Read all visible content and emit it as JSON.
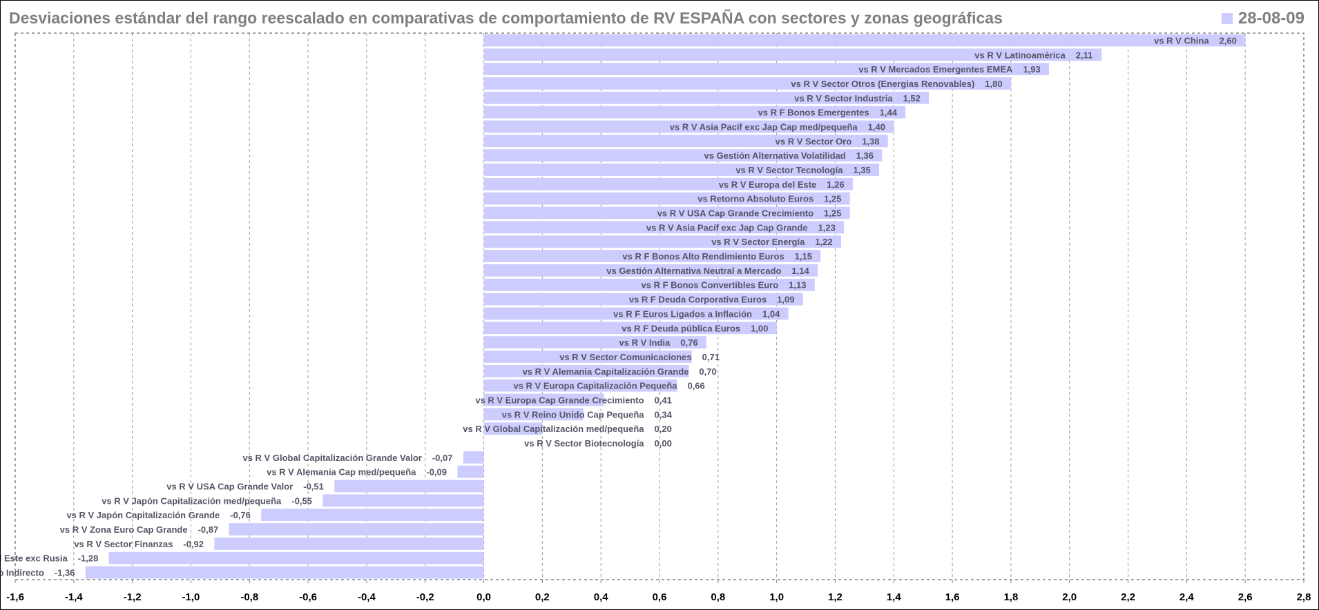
{
  "title": "Desviaciones estándar del rango reescalado en comparativas de comportamiento de RV ESPAÑA con sectores y zonas geográficas",
  "legend": {
    "label": "28-08-09",
    "color": "#ccccff"
  },
  "chart_data": {
    "type": "bar",
    "orientation": "horizontal",
    "title": "Desviaciones estándar del rango reescalado en comparativas de comportamiento de RV ESPAÑA con sectores y zonas geográficas",
    "series": [
      {
        "name": "28-08-09"
      }
    ],
    "xlim": [
      -1.6,
      2.8
    ],
    "x_ticks": [
      "-1,6",
      "-1,4",
      "-1,2",
      "-1,0",
      "-0,8",
      "-0,6",
      "-0,4",
      "-0,2",
      "0,0",
      "0,2",
      "0,4",
      "0,6",
      "0,8",
      "1,0",
      "1,2",
      "1,4",
      "1,6",
      "1,8",
      "2,0",
      "2,2",
      "2,4",
      "2,6",
      "2,8"
    ],
    "x_tick_values": [
      -1.6,
      -1.4,
      -1.2,
      -1.0,
      -0.8,
      -0.6,
      -0.4,
      -0.2,
      0.0,
      0.2,
      0.4,
      0.6,
      0.8,
      1.0,
      1.2,
      1.4,
      1.6,
      1.8,
      2.0,
      2.2,
      2.4,
      2.6,
      2.8
    ],
    "grid": "vertical-dashed",
    "bar_color": "#ccccff",
    "bars": [
      {
        "category": "vs R V China",
        "value": 2.6,
        "value_label": "2,60"
      },
      {
        "category": "vs R V Latinoamérica",
        "value": 2.11,
        "value_label": "2,11"
      },
      {
        "category": "vs R V Mercados Emergentes EMEA",
        "value": 1.93,
        "value_label": "1,93"
      },
      {
        "category": "vs R V Sector Otros (Energias Renovables)",
        "value": 1.8,
        "value_label": "1,80"
      },
      {
        "category": "vs R V Sector Industria",
        "value": 1.52,
        "value_label": "1,52"
      },
      {
        "category": "vs R F Bonos Emergentes",
        "value": 1.44,
        "value_label": "1,44"
      },
      {
        "category": "vs R V Asia Pacíf exc Jap Cap med/pequeña",
        "value": 1.4,
        "value_label": "1,40"
      },
      {
        "category": "vs R V Sector Oro",
        "value": 1.38,
        "value_label": "1,38"
      },
      {
        "category": "vs Gestión Alternativa Volatilidad",
        "value": 1.36,
        "value_label": "1,36"
      },
      {
        "category": "vs R V Sector Tecnología",
        "value": 1.35,
        "value_label": "1,35"
      },
      {
        "category": "vs R V Europa del Este",
        "value": 1.26,
        "value_label": "1,26"
      },
      {
        "category": "vs Retorno Absoluto Euros",
        "value": 1.25,
        "value_label": "1,25"
      },
      {
        "category": "vs R V USA Cap Grande Crecimiento",
        "value": 1.25,
        "value_label": "1,25"
      },
      {
        "category": "vs R V Asia Pacíf exc Jap Cap Grande",
        "value": 1.23,
        "value_label": "1,23"
      },
      {
        "category": "vs R V Sector Energía",
        "value": 1.22,
        "value_label": "1,22"
      },
      {
        "category": "vs R F Bonos Alto Rendimiento Euros",
        "value": 1.15,
        "value_label": "1,15"
      },
      {
        "category": "vs Gestión Alternativa Neutral a Mercado",
        "value": 1.14,
        "value_label": "1,14"
      },
      {
        "category": "vs R F Bonos Convertibles Euro",
        "value": 1.13,
        "value_label": "1,13"
      },
      {
        "category": "vs R F Deuda Corporativa Euros",
        "value": 1.09,
        "value_label": "1,09"
      },
      {
        "category": "vs R F Euros Ligados a Inflación",
        "value": 1.04,
        "value_label": "1,04"
      },
      {
        "category": "vs R F Deuda pública Euros",
        "value": 1.0,
        "value_label": "1,00"
      },
      {
        "category": "vs R V India",
        "value": 0.76,
        "value_label": "0,76"
      },
      {
        "category": "vs R V Sector Comunicaciones",
        "value": 0.71,
        "value_label": "0,71"
      },
      {
        "category": "vs R V Alemania Capitalización Grande",
        "value": 0.7,
        "value_label": "0,70"
      },
      {
        "category": "vs R V Europa Capitalización Pequeña",
        "value": 0.66,
        "value_label": "0,66"
      },
      {
        "category": "vs R V Europa Cap Grande Crecimiento",
        "value": 0.41,
        "value_label": "0,41"
      },
      {
        "category": "vs R V Reino Unido Cap Pequeña",
        "value": 0.34,
        "value_label": "0,34"
      },
      {
        "category": "vs R V Global Capitalización med/pequeña",
        "value": 0.2,
        "value_label": "0,20"
      },
      {
        "category": "vs R V Sector Biotecnología",
        "value": 0.0,
        "value_label": "0,00"
      },
      {
        "category": "vs R V Global Capitalización Grande Valor",
        "value": -0.07,
        "value_label": "-0,07"
      },
      {
        "category": "vs R V Alemania Cap med/pequeña",
        "value": -0.09,
        "value_label": "-0,09"
      },
      {
        "category": "vs R V USA Cap Grande Valor",
        "value": -0.51,
        "value_label": "-0,51"
      },
      {
        "category": "vs R V Japón Capitalización med/pequeña",
        "value": -0.55,
        "value_label": "-0,55"
      },
      {
        "category": "vs R V Japón Capitalización Grande",
        "value": -0.76,
        "value_label": "-0,76"
      },
      {
        "category": "vs R V Zona Euro Cap Grande",
        "value": -0.87,
        "value_label": "-0,87"
      },
      {
        "category": "vs R V Sector Finanzas",
        "value": -0.92,
        "value_label": "-0,92"
      },
      {
        "category": "vs R V Europa del Este exc Rusia",
        "value": -1.28,
        "value_label": "-1,28"
      },
      {
        "category": "vs R V Sector Inmobiliario Indirecto",
        "value": -1.36,
        "value_label": "-1,36"
      }
    ]
  }
}
